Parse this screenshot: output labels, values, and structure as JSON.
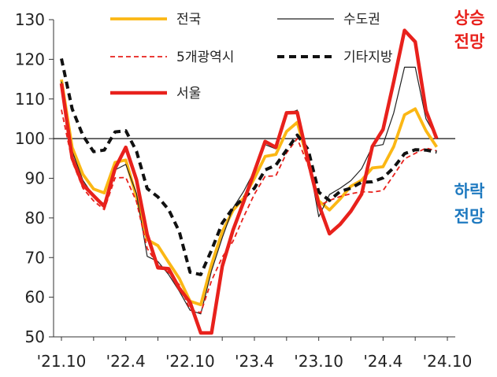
{
  "chart_data": {
    "type": "line",
    "title": "",
    "xlabel": "",
    "ylabel": "",
    "ylim": [
      50,
      130
    ],
    "yticks": [
      50,
      60,
      70,
      80,
      90,
      100,
      110,
      120,
      130
    ],
    "xtick_labels": [
      "'21.10",
      "'22.4",
      "'22.10",
      "'23.4",
      "'23.10",
      "'24.4",
      "'24.10"
    ],
    "xtick_index": [
      0,
      6,
      12,
      18,
      24,
      30,
      36
    ],
    "x": [
      "'21.10",
      "'21.11",
      "'21.12",
      "'22.1",
      "'22.2",
      "'22.3",
      "'22.4",
      "'22.5",
      "'22.6",
      "'22.7",
      "'22.8",
      "'22.9",
      "'22.10",
      "'22.11",
      "'22.12",
      "'23.1",
      "'23.2",
      "'23.3",
      "'23.4",
      "'23.5",
      "'23.6",
      "'23.7",
      "'23.8",
      "'23.9",
      "'23.10",
      "'23.11",
      "'23.12",
      "'24.1",
      "'24.2",
      "'24.3",
      "'24.4",
      "'24.5",
      "'24.6",
      "'24.7",
      "'24.8",
      "'24.9",
      "'24.10"
    ],
    "reference_line": 100,
    "grid": false,
    "legend_position": "top",
    "series": [
      {
        "name": "전국",
        "color": "#fbb714",
        "style": "solid",
        "values": [
          114.9,
          97.8,
          91.0,
          87.3,
          86.3,
          94.0,
          94.6,
          85.3,
          74.5,
          73.0,
          68.8,
          64.7,
          59.0,
          58.1,
          68.3,
          76.5,
          81.9,
          85.0,
          90.0,
          95.5,
          96.0,
          101.8,
          104.1,
          94.3,
          84.3,
          82.0,
          84.8,
          88.0,
          89.5,
          92.6,
          92.9,
          98.0,
          106.0,
          107.5,
          102.0,
          97.9,
          null
        ]
      },
      {
        "name": "수도권",
        "color": "#222222",
        "style": "thin",
        "values": [
          114.4,
          96.9,
          89.5,
          85.5,
          83.5,
          92.1,
          93.5,
          86.1,
          70.3,
          69.0,
          65.7,
          61.5,
          56.7,
          55.8,
          66.7,
          75.0,
          82.5,
          86.7,
          91.9,
          98.5,
          97.4,
          106.1,
          107.2,
          95.3,
          80.3,
          85.9,
          87.5,
          89.4,
          92.4,
          98.0,
          98.5,
          106.5,
          118.0,
          118.0,
          105.0,
          100.2,
          null
        ]
      },
      {
        "name": "5개광역시",
        "color": "#e8211c",
        "style": "dashed",
        "values": [
          107.3,
          94.3,
          87.5,
          84.3,
          82.1,
          90.1,
          90.2,
          84.1,
          72.3,
          68.2,
          66.2,
          63.1,
          56.9,
          56.1,
          64.2,
          70.1,
          74.1,
          80.3,
          86.0,
          90.5,
          90.6,
          96.4,
          100.0,
          93.3,
          83.1,
          84.4,
          85.4,
          86.1,
          86.6,
          86.5,
          86.9,
          90.8,
          94.9,
          96.3,
          97.6,
          96.9,
          null
        ]
      },
      {
        "name": "기타지방",
        "color": "#111111",
        "style": "dashed-thick",
        "values": [
          120.2,
          107.5,
          100.8,
          96.7,
          97.1,
          101.7,
          102.0,
          96.8,
          87.4,
          85.3,
          82.1,
          76.5,
          66.3,
          65.7,
          71.9,
          78.7,
          82.5,
          85.0,
          87.5,
          92.1,
          93.3,
          97.1,
          100.9,
          97.3,
          86.5,
          84.4,
          86.7,
          87.5,
          89.0,
          89.1,
          90.1,
          92.7,
          96.2,
          97.2,
          97.1,
          96.6,
          null
        ]
      },
      {
        "name": "서울",
        "color": "#e8211c",
        "style": "solid-thick",
        "values": [
          113.9,
          95.1,
          88.4,
          85.6,
          82.9,
          92.5,
          97.8,
          89.6,
          75.8,
          67.4,
          67.2,
          62.2,
          58.7,
          51.0,
          51.0,
          67.8,
          76.9,
          84.1,
          91.7,
          99.3,
          97.8,
          106.5,
          106.6,
          94.5,
          83.4,
          76.0,
          78.4,
          81.7,
          86.0,
          98.0,
          102.3,
          114.4,
          127.3,
          124.4,
          107.1,
          100.0,
          null
        ]
      }
    ],
    "annotations": {
      "up_line1": "상승",
      "up_line2": "전망",
      "down_line1": "하락",
      "down_line2": "전망"
    }
  }
}
